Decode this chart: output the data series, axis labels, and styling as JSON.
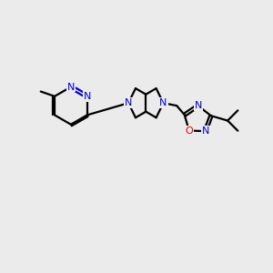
{
  "background_color": "#ebebeb",
  "bond_color": "#000000",
  "N_color": "#0000cc",
  "O_color": "#dd0000",
  "line_width": 1.6,
  "figsize": [
    3.0,
    3.0
  ],
  "dpi": 100,
  "xlim": [
    0,
    10
  ],
  "ylim": [
    0,
    10
  ]
}
